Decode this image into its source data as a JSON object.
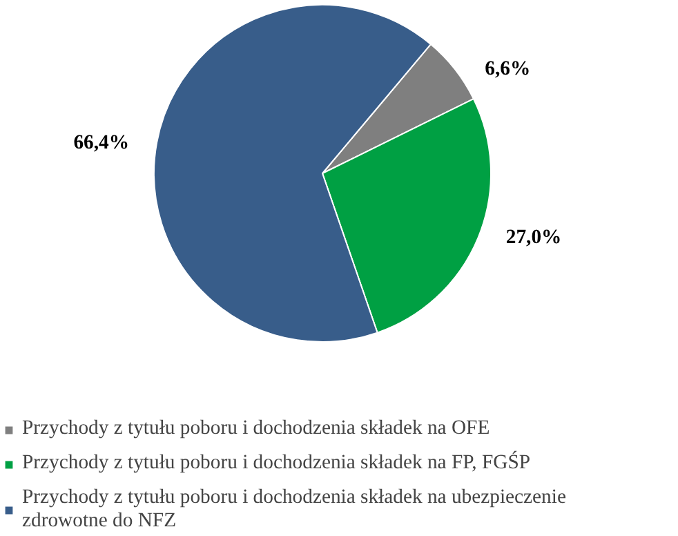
{
  "chart_data": {
    "type": "pie",
    "categories": [
      "Przychody z tytułu poboru i dochodzenia składek na OFE",
      "Przychody z tytułu poboru i dochodzenia składek na FP, FGŚP",
      "Przychody z tytułu poboru i dochodzenia składek na ubezpieczenie zdrowotne do NFZ"
    ],
    "values": [
      6.6,
      27.0,
      66.4
    ],
    "colors": [
      "#7f7f7f",
      "#00a043",
      "#385d8a"
    ],
    "value_labels": [
      "6,6%",
      "27,0%",
      "66,4%"
    ],
    "legend": "bottom"
  }
}
